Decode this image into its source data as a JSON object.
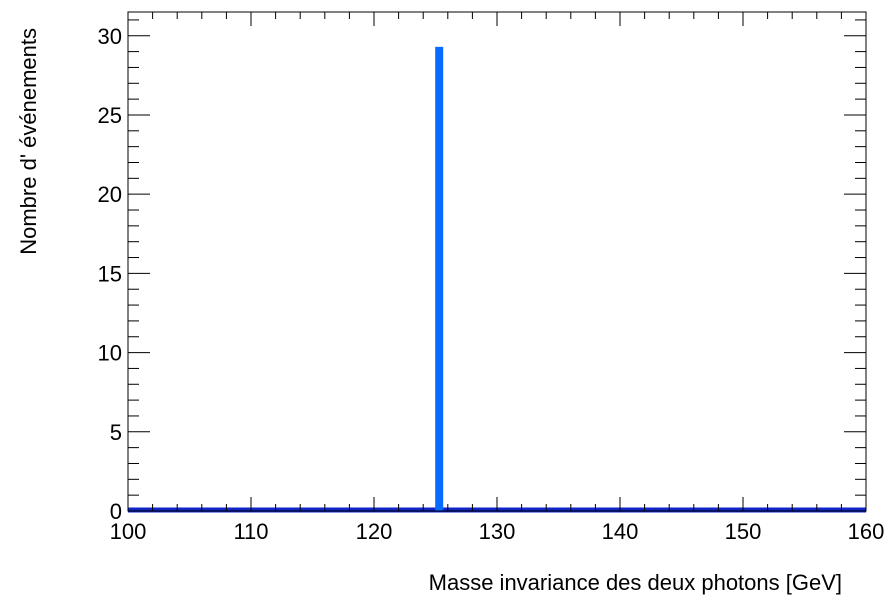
{
  "chart_data": {
    "type": "bar",
    "title": "",
    "xlabel": "Masse invariance des deux photons [GeV]",
    "ylabel": "Nombre d' événements",
    "xlim": [
      100,
      160
    ],
    "ylim": [
      0,
      31.5
    ],
    "x_ticks": [
      100,
      110,
      120,
      130,
      140,
      150,
      160
    ],
    "y_ticks": [
      0,
      5,
      10,
      15,
      20,
      25,
      30
    ],
    "x_minor_step": 2,
    "y_minor_step": 1,
    "series": [
      {
        "bars": [
          {
            "x": 125.3,
            "value": 29.3
          }
        ],
        "color": "#0a6cff"
      }
    ],
    "baseline_color": "#1025c8",
    "grid": false,
    "legend": "none"
  }
}
